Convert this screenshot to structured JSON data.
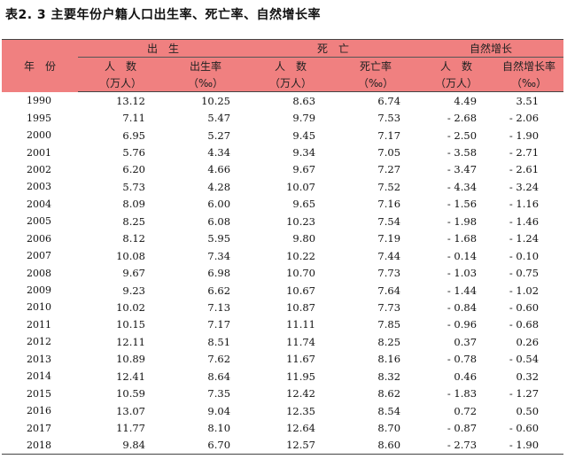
{
  "title": "表2. 3 主要年份户籍人口出生率、死亡率、自然增长率",
  "header": {
    "year": "年　份",
    "births": "出　生",
    "deaths": "死　亡",
    "natural": "自然增长",
    "count_label": "人　数",
    "birth_rate": "出生率",
    "death_rate": "死亡率",
    "natural_rate": "自然增长率",
    "count_unit": "（万人）",
    "rate_unit": "（‰）"
  },
  "rows": [
    [
      "1990",
      "13.12",
      "10.25",
      "8.63",
      "6.74",
      "4.49",
      "3.51"
    ],
    [
      "1995",
      "7.11",
      "5.47",
      "9.79",
      "7.53",
      "- 2.68",
      "- 2.06"
    ],
    [
      "2000",
      "6.95",
      "5.27",
      "9.45",
      "7.17",
      "- 2.50",
      "- 1.90"
    ],
    [
      "2001",
      "5.76",
      "4.34",
      "9.34",
      "7.05",
      "- 3.58",
      "- 2.71"
    ],
    [
      "2002",
      "6.20",
      "4.66",
      "9.67",
      "7.27",
      "- 3.47",
      "- 2.61"
    ],
    [
      "2003",
      "5.73",
      "4.28",
      "10.07",
      "7.52",
      "- 4.34",
      "- 3.24"
    ],
    [
      "2004",
      "8.09",
      "6.00",
      "9.65",
      "7.16",
      "- 1.56",
      "- 1.16"
    ],
    [
      "2005",
      "8.25",
      "6.08",
      "10.23",
      "7.54",
      "- 1.98",
      "- 1.46"
    ],
    [
      "2006",
      "8.12",
      "5.95",
      "9.80",
      "7.19",
      "- 1.68",
      "- 1.24"
    ],
    [
      "2007",
      "10.08",
      "7.34",
      "10.22",
      "7.44",
      "- 0.14",
      "- 0.10"
    ],
    [
      "2008",
      "9.67",
      "6.98",
      "10.70",
      "7.73",
      "- 1.03",
      "- 0.75"
    ],
    [
      "2009",
      "9.23",
      "6.62",
      "10.67",
      "7.64",
      "- 1.44",
      "- 1.02"
    ],
    [
      "2010",
      "10.02",
      "7.13",
      "10.87",
      "7.73",
      "- 0.84",
      "- 0.60"
    ],
    [
      "2011",
      "10.15",
      "7.17",
      "11.11",
      "7.85",
      "- 0.96",
      "- 0.68"
    ],
    [
      "2012",
      "12.11",
      "8.51",
      "11.74",
      "8.25",
      "0.37",
      "0.26"
    ],
    [
      "2013",
      "10.89",
      "7.62",
      "11.67",
      "8.16",
      "- 0.78",
      "- 0.54"
    ],
    [
      "2014",
      "12.41",
      "8.64",
      "11.95",
      "8.32",
      "0.46",
      "0.32"
    ],
    [
      "2015",
      "10.59",
      "7.35",
      "12.42",
      "8.62",
      "- 1.83",
      "- 1.27"
    ],
    [
      "2016",
      "13.07",
      "9.04",
      "12.35",
      "8.54",
      "0.72",
      "0.50"
    ],
    [
      "2017",
      "11.77",
      "8.10",
      "12.64",
      "8.70",
      "- 0.87",
      "- 0.60"
    ],
    [
      "2018",
      "9.84",
      "6.70",
      "12.57",
      "8.60",
      "- 2.73",
      "- 1.90"
    ]
  ]
}
